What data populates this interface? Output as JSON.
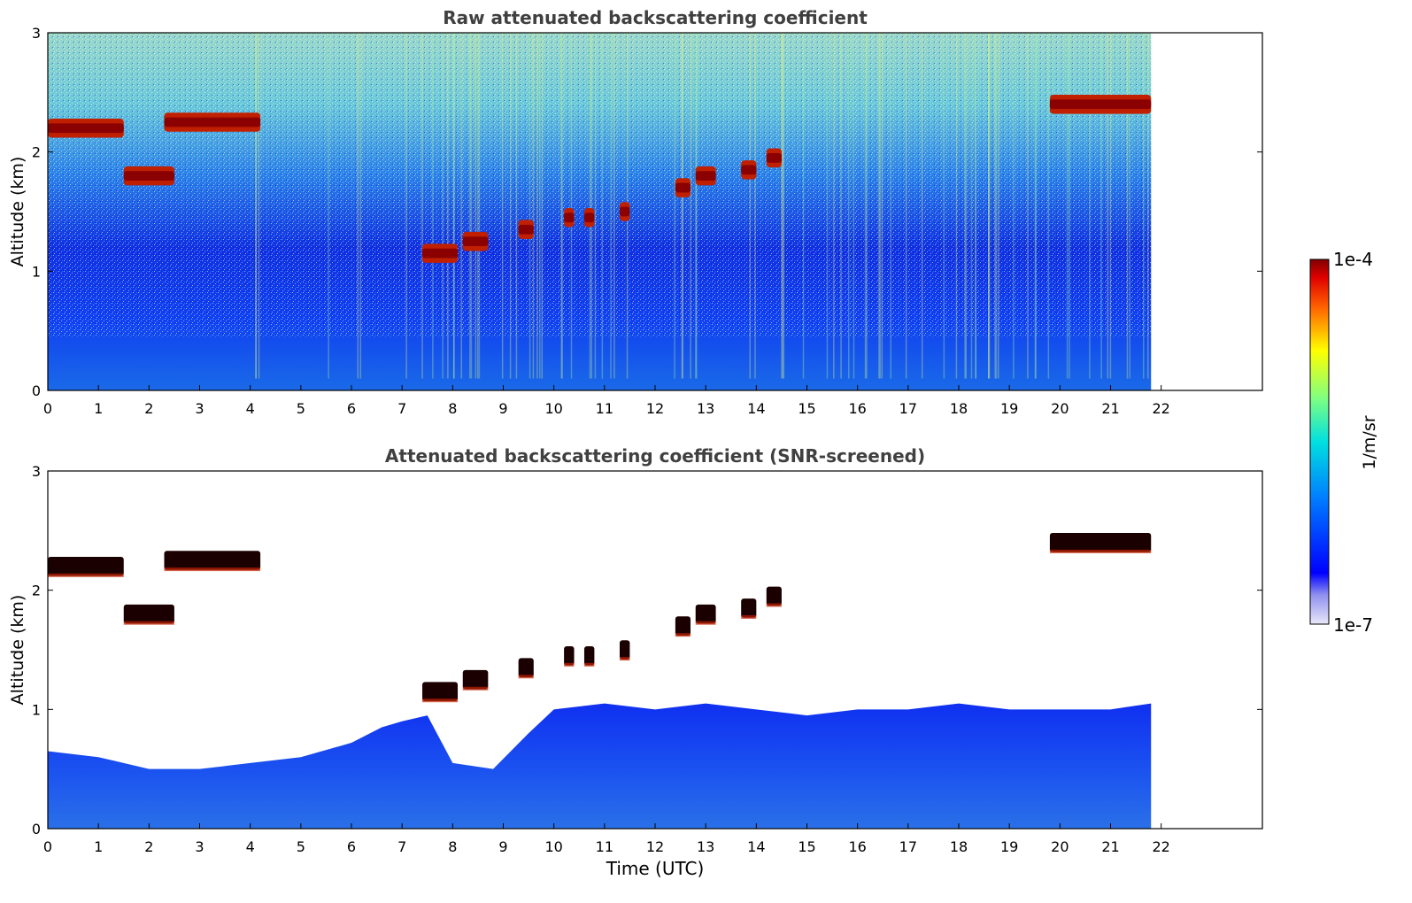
{
  "chart_data": [
    {
      "type": "heatmap",
      "title": "Raw attenuated backscattering coefficient",
      "xlabel": "",
      "ylabel": "Altitude (km)",
      "xlim": [
        0,
        24
      ],
      "ylim": [
        0,
        3
      ],
      "x_ticks": [
        0,
        1,
        2,
        3,
        4,
        5,
        6,
        7,
        8,
        9,
        10,
        11,
        12,
        13,
        14,
        15,
        16,
        17,
        18,
        19,
        20,
        21,
        22
      ],
      "y_ticks": [
        0,
        1,
        2,
        3
      ],
      "data_end_time": 21.8,
      "cloud_layers": [
        {
          "start": 0.0,
          "end": 1.5,
          "altitude": 2.2
        },
        {
          "start": 1.5,
          "end": 2.5,
          "altitude": 1.8
        },
        {
          "start": 2.3,
          "end": 4.2,
          "altitude": 2.25
        },
        {
          "start": 7.4,
          "end": 8.1,
          "altitude": 1.15
        },
        {
          "start": 8.2,
          "end": 8.7,
          "altitude": 1.25
        },
        {
          "start": 9.3,
          "end": 9.6,
          "altitude": 1.35
        },
        {
          "start": 10.2,
          "end": 10.4,
          "altitude": 1.45
        },
        {
          "start": 10.6,
          "end": 10.8,
          "altitude": 1.45
        },
        {
          "start": 11.3,
          "end": 11.5,
          "altitude": 1.5
        },
        {
          "start": 12.4,
          "end": 12.7,
          "altitude": 1.7
        },
        {
          "start": 12.8,
          "end": 13.2,
          "altitude": 1.8
        },
        {
          "start": 13.7,
          "end": 14.0,
          "altitude": 1.85
        },
        {
          "start": 14.2,
          "end": 14.5,
          "altitude": 1.95
        },
        {
          "start": 19.8,
          "end": 21.8,
          "altitude": 2.4
        }
      ]
    },
    {
      "type": "heatmap",
      "title": "Attenuated backscattering coefficient (SNR-screened)",
      "xlabel": "Time (UTC)",
      "ylabel": "Altitude (km)",
      "xlim": [
        0,
        24
      ],
      "ylim": [
        0,
        3
      ],
      "x_ticks": [
        0,
        1,
        2,
        3,
        4,
        5,
        6,
        7,
        8,
        9,
        10,
        11,
        12,
        13,
        14,
        15,
        16,
        17,
        18,
        19,
        20,
        21,
        22
      ],
      "y_ticks": [
        0,
        1,
        2,
        3
      ],
      "data_end_time": 21.8,
      "boundary_layer_top": [
        [
          0,
          0.65
        ],
        [
          1,
          0.6
        ],
        [
          2,
          0.5
        ],
        [
          3,
          0.5
        ],
        [
          4,
          0.55
        ],
        [
          5,
          0.6
        ],
        [
          6,
          0.72
        ],
        [
          6.6,
          0.85
        ],
        [
          7,
          0.9
        ],
        [
          7.5,
          0.95
        ],
        [
          8,
          0.55
        ],
        [
          8.8,
          0.5
        ],
        [
          9.5,
          0.8
        ],
        [
          10,
          1.0
        ],
        [
          11,
          1.05
        ],
        [
          12,
          1.0
        ],
        [
          13,
          1.05
        ],
        [
          14,
          1.0
        ],
        [
          15,
          0.95
        ],
        [
          16,
          1.0
        ],
        [
          17,
          1.0
        ],
        [
          18,
          1.05
        ],
        [
          19,
          1.0
        ],
        [
          20,
          1.0
        ],
        [
          21,
          1.0
        ],
        [
          21.8,
          1.05
        ]
      ]
    }
  ],
  "colorbar": {
    "max_label": "1e-4",
    "min_label": "1e-7",
    "unit_label": "1/m/sr"
  },
  "colors": {
    "screened_mask": "#ffffff",
    "cloud_core": "#8b0000",
    "frame": "#000000"
  }
}
